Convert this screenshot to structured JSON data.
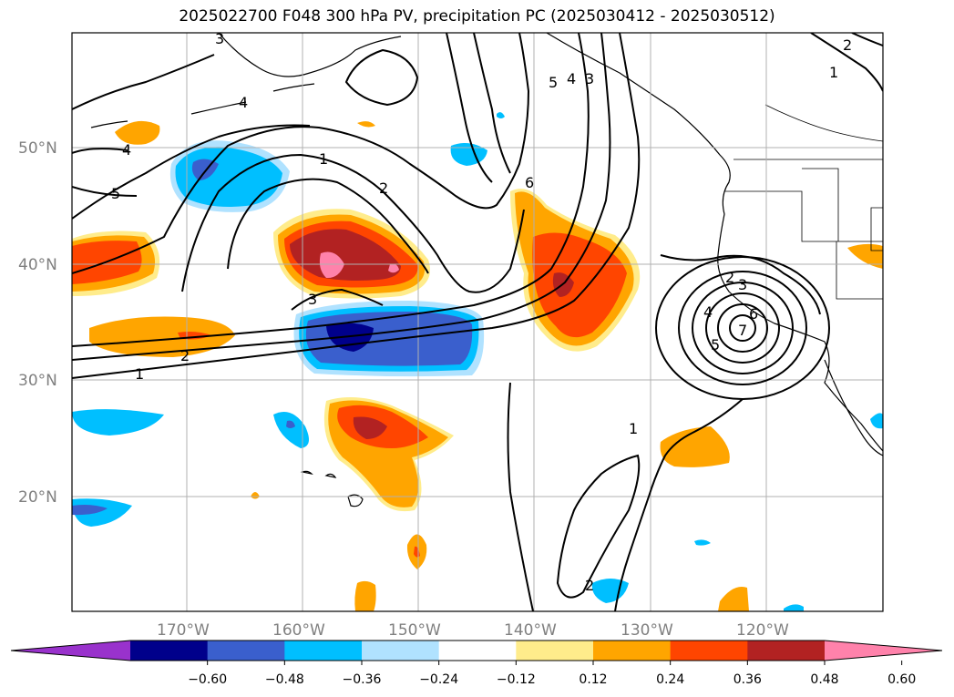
{
  "title": "2025022700 F048 300 hPa PV, precipitation PC (2025030412 - 2025030512)",
  "lat_labels": [
    "50°N",
    "40°N",
    "30°N",
    "20°N"
  ],
  "lon_labels": [
    "170°W",
    "160°W",
    "150°W",
    "140°W",
    "130°W",
    "120°W"
  ],
  "colorbar": {
    "ticks": [
      "−0.60",
      "−0.48",
      "−0.36",
      "−0.24",
      "−0.12",
      "0.12",
      "0.24",
      "0.36",
      "0.48",
      "0.60"
    ],
    "colors": [
      "#9932cc",
      "#00008b",
      "#3a5fcd",
      "#00bfff",
      "#b0e2ff",
      "#ffffff",
      "#ffec8b",
      "#ffa500",
      "#ff4500",
      "#b22222",
      "#ff82ab"
    ]
  },
  "contour_labels": [
    "1",
    "2",
    "3",
    "4",
    "5",
    "6",
    "7"
  ]
}
